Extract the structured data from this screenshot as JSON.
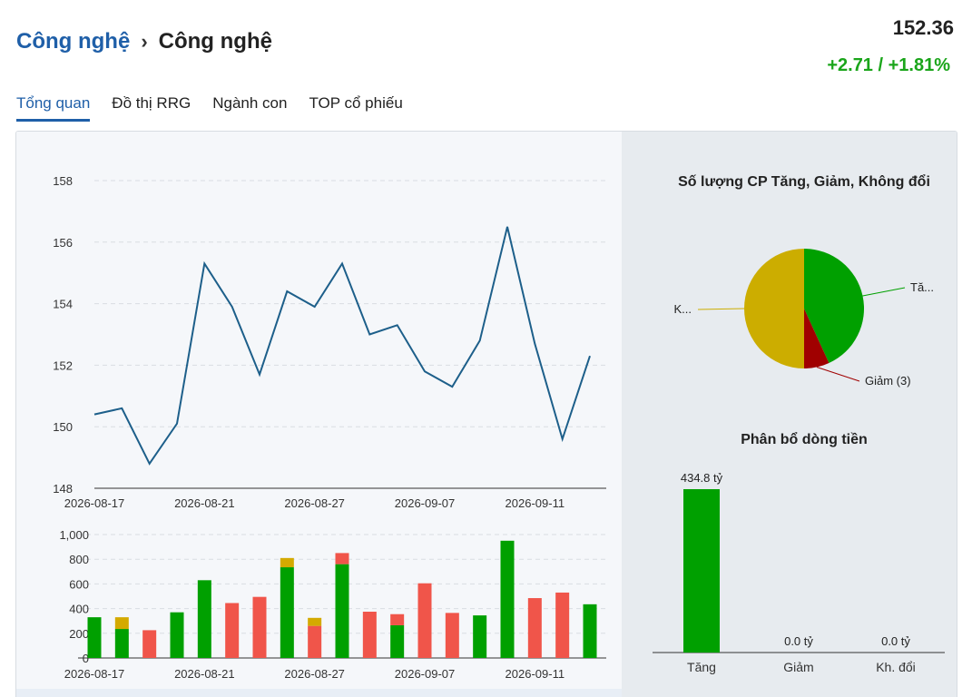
{
  "header": {
    "breadcrumb_parent": "Công nghệ",
    "breadcrumb_separator": "›",
    "breadcrumb_current": "Công nghệ",
    "price": "152.36",
    "change": "+2.71 / +1.81%"
  },
  "tabs": [
    {
      "label": "Tổng quan",
      "active": true
    },
    {
      "label": "Đồ thị RRG",
      "active": false
    },
    {
      "label": "Ngành con",
      "active": false
    },
    {
      "label": "TOP cổ phiếu",
      "active": false
    }
  ],
  "colors": {
    "up": "#00a000",
    "down": "#f0554a",
    "neutral": "#d4aa00",
    "line": "#1d5f8a",
    "pie_down": "#a00000",
    "pie_neutral": "#ccad00"
  },
  "chart_data": [
    {
      "type": "line",
      "x_tick_labels": [
        "2026-08-17",
        "2026-08-21",
        "2026-08-27",
        "2026-09-07",
        "2026-09-11"
      ],
      "x_tick_indices": [
        0,
        4,
        8,
        12,
        16
      ],
      "values": [
        150.4,
        150.6,
        148.8,
        150.1,
        155.3,
        153.9,
        151.7,
        154.4,
        153.9,
        155.3,
        153.0,
        153.3,
        151.8,
        151.3,
        152.8,
        156.5,
        152.7,
        149.6,
        152.3
      ],
      "y_ticks": [
        "148",
        "150",
        "152",
        "154",
        "156",
        "158"
      ],
      "ylim": [
        148,
        158
      ]
    },
    {
      "type": "bar",
      "stacked": true,
      "x_tick_labels": [
        "2026-08-17",
        "2026-08-21",
        "2026-08-27",
        "2026-09-07",
        "2026-09-11"
      ],
      "x_tick_indices": [
        0,
        4,
        8,
        12,
        16
      ],
      "y_ticks": [
        "0",
        "200",
        "400",
        "600",
        "800",
        "1,000"
      ],
      "ylim": [
        0,
        1000
      ],
      "bars": [
        {
          "up": 330,
          "down": 0,
          "neutral": 0
        },
        {
          "up": 235,
          "down": 0,
          "neutral": 95
        },
        {
          "up": 0,
          "down": 225,
          "neutral": 0
        },
        {
          "up": 370,
          "down": 0,
          "neutral": 0
        },
        {
          "up": 630,
          "down": 0,
          "neutral": 0
        },
        {
          "up": 0,
          "down": 445,
          "neutral": 0
        },
        {
          "up": 0,
          "down": 495,
          "neutral": 0
        },
        {
          "up": 735,
          "down": 0,
          "neutral": 75
        },
        {
          "up": 0,
          "down": 260,
          "neutral": 65
        },
        {
          "up": 760,
          "down": 90,
          "neutral": 0
        },
        {
          "up": 0,
          "down": 375,
          "neutral": 0
        },
        {
          "up": 265,
          "down": 90,
          "neutral": 0
        },
        {
          "up": 0,
          "down": 605,
          "neutral": 0
        },
        {
          "up": 0,
          "down": 365,
          "neutral": 0
        },
        {
          "up": 345,
          "down": 0,
          "neutral": 0
        },
        {
          "up": 950,
          "down": 0,
          "neutral": 0
        },
        {
          "up": 0,
          "down": 485,
          "neutral": 0
        },
        {
          "up": 0,
          "down": 530,
          "neutral": 0
        },
        {
          "up": 435,
          "down": 0,
          "neutral": 0
        }
      ]
    },
    {
      "type": "pie",
      "title": "Số lượng CP Tăng, Giảm, Không đổi",
      "slices": [
        {
          "label": "Tă...",
          "value": 19,
          "color": "#00a000"
        },
        {
          "label": "Giảm (3)",
          "value": 3,
          "color": "#a00000"
        },
        {
          "label": "K...",
          "value": 22,
          "color": "#ccad00"
        }
      ]
    },
    {
      "type": "bar",
      "title": "Phân bổ dòng tiền",
      "categories": [
        "Tăng",
        "Giảm",
        "Kh. đổi"
      ],
      "values": [
        434.8,
        0.0,
        0.0
      ],
      "value_labels": [
        "434.8 tỷ",
        "0.0 tỷ",
        "0.0 tỷ"
      ],
      "color": "#00a000"
    }
  ]
}
